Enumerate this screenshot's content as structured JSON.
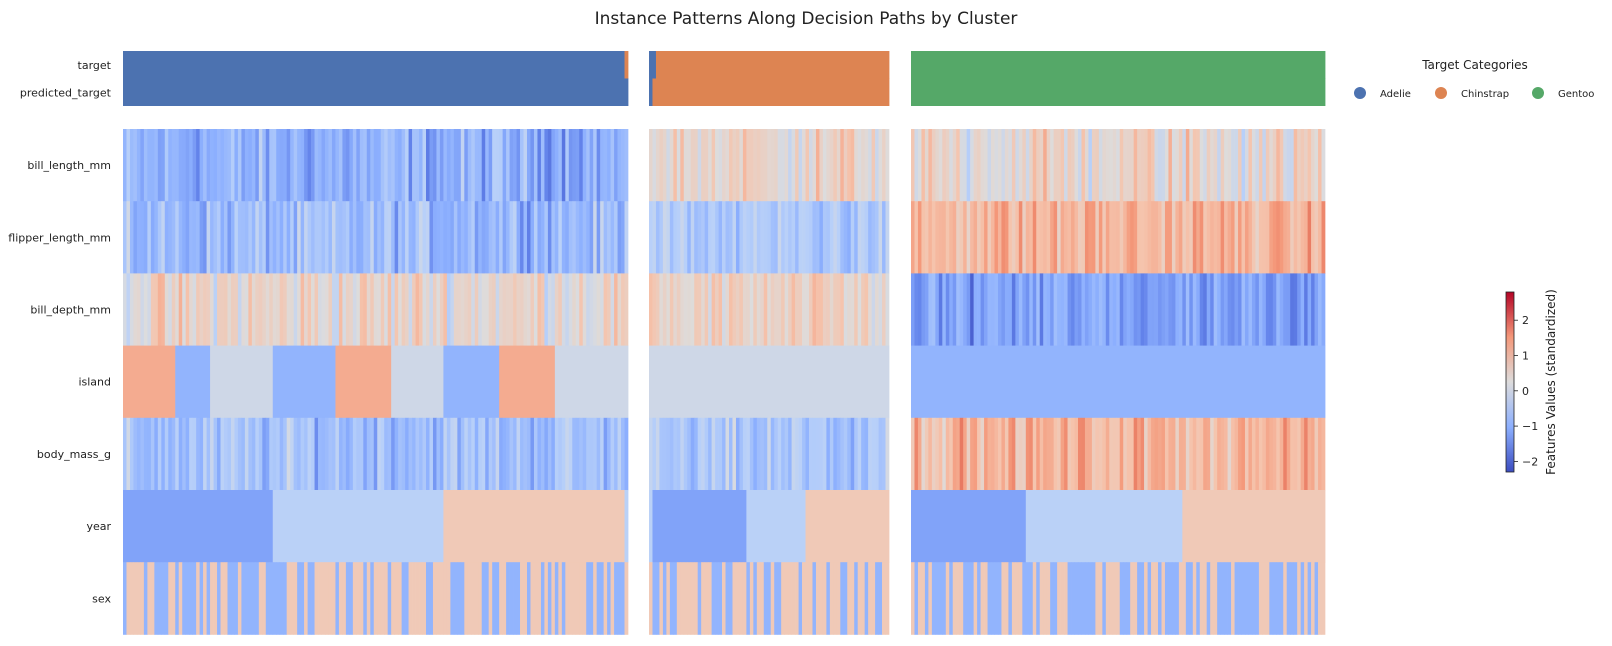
{
  "chart_data": {
    "type": "heatmap",
    "title": "Instance Patterns Along Decision Paths by Cluster",
    "row_labels": {
      "target_rows": [
        "target",
        "predicted_target"
      ],
      "feature_rows": [
        "bill_length_mm",
        "flipper_length_mm",
        "bill_depth_mm",
        "island",
        "body_mass_g",
        "year",
        "sex"
      ]
    },
    "legend": {
      "title": "Target Categories",
      "placement": "top-right",
      "items": [
        {
          "label": "Adelie",
          "color": "#4c72b0"
        },
        {
          "label": "Chinstrap",
          "color": "#dd8452"
        },
        {
          "label": "Gentoo",
          "color": "#55a868"
        }
      ]
    },
    "colorbar": {
      "label": "Features Values (standardized)",
      "range": [
        -2.3,
        2.8
      ],
      "ticks": [
        -2,
        -1,
        0,
        1,
        2
      ],
      "tick_labels": [
        "−2",
        "−1",
        "0",
        "1",
        "2"
      ],
      "colormap": "coolwarm"
    },
    "clusters": [
      {
        "n_instances": 145,
        "target_segments": [
          {
            "category": "Adelie",
            "count": 144
          },
          {
            "category": "Chinstrap",
            "count": 1
          }
        ],
        "predicted_segments": [
          {
            "category": "Adelie",
            "count": 145
          }
        ],
        "feature_profiles": {
          "bill_length_mm": {
            "type": "random",
            "mean": -1.0,
            "spread": 0.5
          },
          "flipper_length_mm": {
            "type": "random",
            "mean": -0.8,
            "spread": 0.45
          },
          "bill_depth_mm": {
            "type": "random",
            "mean": 0.45,
            "spread": 0.5
          },
          "island": {
            "type": "segments",
            "segments": [
              {
                "count": 15,
                "value": 1.25
              },
              {
                "count": 10,
                "value": -0.95
              },
              {
                "count": 18,
                "value": 0.0
              },
              {
                "count": 18,
                "value": -0.95
              },
              {
                "count": 16,
                "value": 1.25
              },
              {
                "count": 15,
                "value": 0.0
              },
              {
                "count": 16,
                "value": -0.95
              },
              {
                "count": 16,
                "value": 1.25
              },
              {
                "count": 21,
                "value": 0.0
              }
            ]
          },
          "body_mass_g": {
            "type": "random",
            "mean": -0.7,
            "spread": 0.45
          },
          "year": {
            "type": "segments",
            "segments": [
              {
                "count": 43,
                "value": -1.2
              },
              {
                "count": 49,
                "value": -0.35
              },
              {
                "count": 52,
                "value": 0.75
              },
              {
                "count": 1,
                "value": -0.35
              }
            ]
          },
          "sex": {
            "type": "binary",
            "values": [
              -0.95,
              0.75
            ]
          }
        }
      },
      {
        "n_instances": 69,
        "target_segments": [
          {
            "category": "Adelie",
            "count": 2
          },
          {
            "category": "Chinstrap",
            "count": 67
          }
        ],
        "predicted_segments": [
          {
            "category": "Adelie",
            "count": 1
          },
          {
            "category": "Chinstrap",
            "count": 68
          }
        ],
        "feature_profiles": {
          "bill_length_mm": {
            "type": "random",
            "mean": 0.5,
            "spread": 0.45
          },
          "flipper_length_mm": {
            "type": "random",
            "mean": -0.55,
            "spread": 0.35
          },
          "bill_depth_mm": {
            "type": "random",
            "mean": 0.5,
            "spread": 0.4
          },
          "island": {
            "type": "segments",
            "segments": [
              {
                "count": 69,
                "value": 0.0
              }
            ]
          },
          "body_mass_g": {
            "type": "random",
            "mean": -0.65,
            "spread": 0.45
          },
          "year": {
            "type": "segments",
            "segments": [
              {
                "count": 1,
                "value": -0.35
              },
              {
                "count": 27,
                "value": -1.2
              },
              {
                "count": 17,
                "value": -0.35
              },
              {
                "count": 24,
                "value": 0.75
              }
            ]
          },
          "sex": {
            "type": "binary",
            "values": [
              -0.95,
              0.75
            ]
          }
        }
      },
      {
        "n_instances": 119,
        "target_segments": [
          {
            "category": "Gentoo",
            "count": 119
          }
        ],
        "predicted_segments": [
          {
            "category": "Gentoo",
            "count": 119
          }
        ],
        "feature_profiles": {
          "bill_length_mm": {
            "type": "random",
            "mean": 0.45,
            "spread": 0.55
          },
          "flipper_length_mm": {
            "type": "random",
            "mean": 1.1,
            "spread": 0.4
          },
          "bill_depth_mm": {
            "type": "random",
            "mean": -1.2,
            "spread": 0.45
          },
          "island": {
            "type": "segments",
            "segments": [
              {
                "count": 119,
                "value": -0.95
              }
            ]
          },
          "body_mass_g": {
            "type": "random",
            "mean": 1.1,
            "spread": 0.45
          },
          "year": {
            "type": "segments",
            "segments": [
              {
                "count": 33,
                "value": -1.2
              },
              {
                "count": 45,
                "value": -0.35
              },
              {
                "count": 41,
                "value": 0.75
              }
            ]
          },
          "sex": {
            "type": "binary",
            "values": [
              -0.95,
              0.75
            ]
          }
        }
      }
    ]
  }
}
